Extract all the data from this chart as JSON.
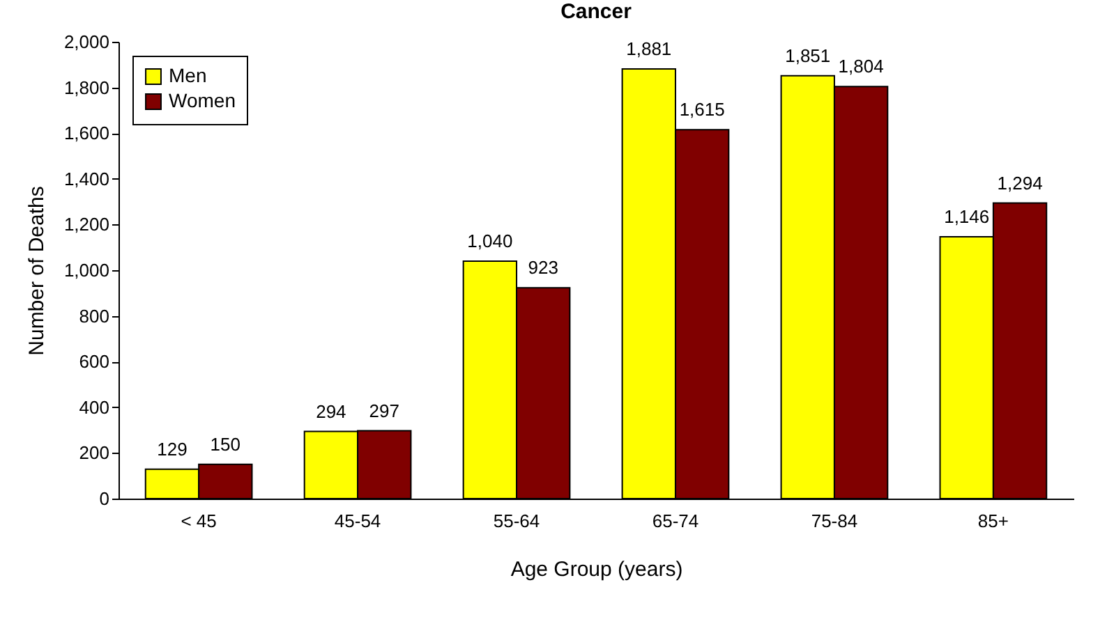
{
  "chart_data": {
    "type": "bar",
    "title": "Cancer",
    "xlabel": "Age Group (years)",
    "ylabel": "Number of Deaths",
    "categories": [
      "< 45",
      "45-54",
      "55-64",
      "65-74",
      "75-84",
      "85+"
    ],
    "series": [
      {
        "name": "Men",
        "color": "#ffff00",
        "values": [
          129,
          294,
          1040,
          1881,
          1851,
          1146
        ],
        "value_labels": [
          "129",
          "294",
          "1,040",
          "1,881",
          "1,851",
          "1,146"
        ]
      },
      {
        "name": "Women",
        "color": "#800000",
        "values": [
          150,
          297,
          923,
          1615,
          1804,
          1294
        ],
        "value_labels": [
          "150",
          "297",
          "923",
          "1,615",
          "1,804",
          "1,294"
        ]
      }
    ],
    "ylim": [
      0,
      2000
    ],
    "yticks": [
      0,
      {
        "value": 200,
        "label": "200"
      },
      {
        "value": 400,
        "label": "400"
      },
      {
        "value": 600,
        "label": "600"
      },
      {
        "value": 800,
        "label": "800"
      },
      {
        "value": 1000,
        "label": "1,000"
      },
      {
        "value": 1200,
        "label": "1,200"
      },
      {
        "value": 1400,
        "label": "1,400"
      },
      {
        "value": 1600,
        "label": "1,600"
      },
      {
        "value": 1800,
        "label": "1,800"
      },
      {
        "value": 2000,
        "label": "2,000"
      }
    ],
    "legend": "top left"
  }
}
